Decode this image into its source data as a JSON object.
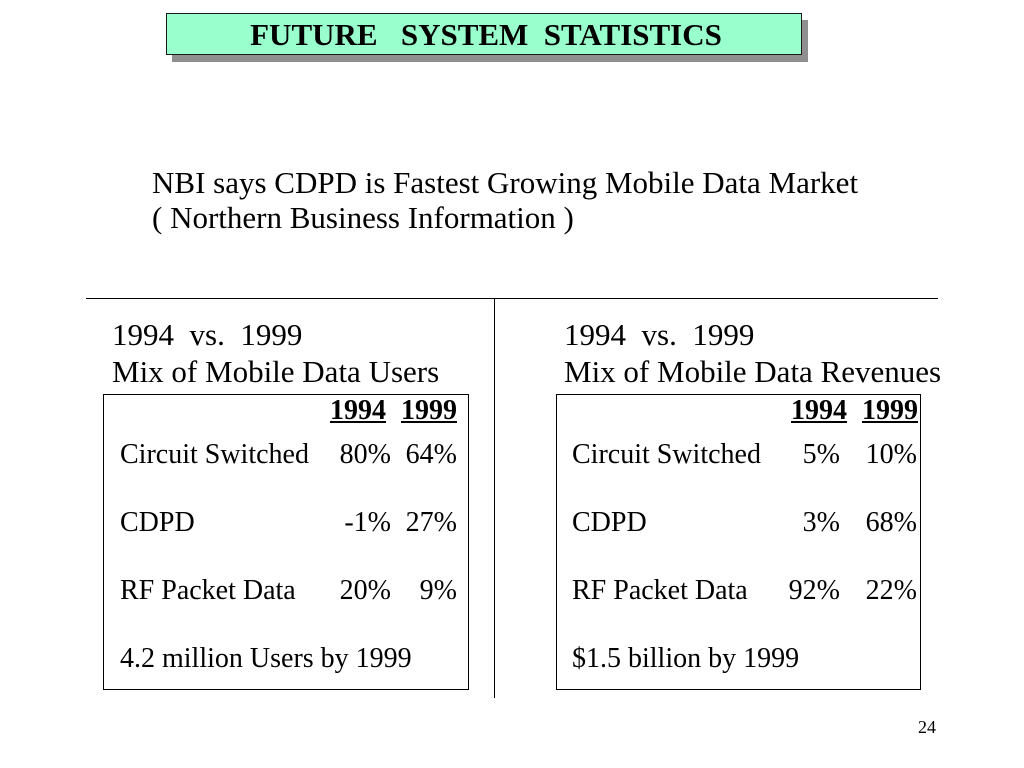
{
  "slide": {
    "title": "FUTURE   SYSTEM  STATISTICS",
    "subtitle_line1": "NBI says CDPD is Fastest Growing Mobile Data Market",
    "subtitle_line2": "( Northern Business Information )",
    "page_number": "24"
  },
  "panels": [
    {
      "heading_years": "1994  vs.  1999",
      "heading_title": "Mix of Mobile Data Users",
      "columns": [
        "1994",
        "1999"
      ],
      "rows": [
        {
          "label": "Circuit Switched",
          "v1994": "80%",
          "v1999": "64%"
        },
        {
          "label": "CDPD",
          "v1994": "-1%",
          "v1999": "27%"
        },
        {
          "label": "RF Packet Data",
          "v1994": "20%",
          "v1999": "9%"
        }
      ],
      "footnote": "4.2 million Users by 1999"
    },
    {
      "heading_years": "1994  vs.  1999",
      "heading_title": "Mix of Mobile Data Revenues",
      "columns": [
        "1994",
        "1999"
      ],
      "rows": [
        {
          "label": "Circuit Switched",
          "v1994": "5%",
          "v1999": "10%"
        },
        {
          "label": "CDPD",
          "v1994": "3%",
          "v1999": "68%"
        },
        {
          "label": "RF Packet Data",
          "v1994": "92%",
          "v1999": "22%"
        }
      ],
      "footnote": "$1.5 billion by 1999"
    }
  ],
  "colors": {
    "title_fill": "#99FFCC",
    "title_shadow": "#8F8F8F",
    "text": "#000000",
    "background": "#FFFFFF"
  }
}
